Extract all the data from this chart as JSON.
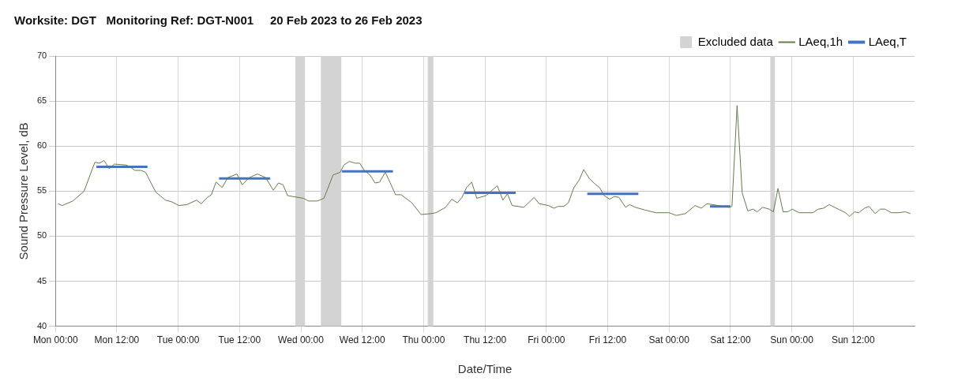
{
  "chart_data": {
    "type": "line",
    "title": "Worksite: DGT   Monitoring Ref: DGT-N001     20 Feb 2023 to 26 Feb 2023",
    "xlabel": "Date/Time",
    "ylabel": "Sound Pressure Level, dB",
    "xlim": [
      "2023-02-20T00:00",
      "2023-02-27T00:00"
    ],
    "xticks": [
      {
        "value": "2023-02-20T00:00",
        "label": "Mon 00:00"
      },
      {
        "value": "2023-02-20T12:00",
        "label": "Mon 12:00"
      },
      {
        "value": "2023-02-21T00:00",
        "label": "Tue 00:00"
      },
      {
        "value": "2023-02-21T12:00",
        "label": "Tue 12:00"
      },
      {
        "value": "2023-02-22T00:00",
        "label": "Wed 00:00"
      },
      {
        "value": "2023-02-22T12:00",
        "label": "Wed 12:00"
      },
      {
        "value": "2023-02-23T00:00",
        "label": "Thu 00:00"
      },
      {
        "value": "2023-02-23T12:00",
        "label": "Thu 12:00"
      },
      {
        "value": "2023-02-24T00:00",
        "label": "Fri 00:00"
      },
      {
        "value": "2023-02-24T12:00",
        "label": "Fri 12:00"
      },
      {
        "value": "2023-02-25T00:00",
        "label": "Sat 00:00"
      },
      {
        "value": "2023-02-25T12:00",
        "label": "Sat 12:00"
      },
      {
        "value": "2023-02-26T00:00",
        "label": "Sun 00:00"
      },
      {
        "value": "2023-02-26T12:00",
        "label": "Sun 12:00"
      }
    ],
    "ylim": [
      40,
      70
    ],
    "yticks": [
      40,
      45,
      50,
      55,
      60,
      65,
      70
    ],
    "grid": true,
    "legend": "top right",
    "marker": "none",
    "bands": [
      {
        "axis": "x",
        "from": "2023-02-21T22:54",
        "to": "2023-02-22T00:48",
        "label": "Excluded data",
        "color": "#d3d3d3"
      },
      {
        "axis": "x",
        "from": "2023-02-22T03:54",
        "to": "2023-02-22T07:54",
        "color": "#d3d3d3"
      },
      {
        "axis": "x",
        "from": "2023-02-23T00:48",
        "to": "2023-02-23T01:54",
        "color": "#d3d3d3"
      },
      {
        "axis": "x",
        "from": "2023-02-25T19:48",
        "to": "2023-02-25T20:42",
        "color": "#d3d3d3"
      }
    ],
    "series": [
      {
        "name": "LAeq,1h",
        "color": "#627d47",
        "x": [
          "2023-02-20T00:30",
          "2023-02-20T01:18",
          "2023-02-20T03:24",
          "2023-02-20T05:36",
          "2023-02-20T07:42",
          "2023-02-20T08:36",
          "2023-02-20T09:30",
          "2023-02-20T10:30",
          "2023-02-20T11:30",
          "2023-02-20T13:48",
          "2023-02-20T14:36",
          "2023-02-20T15:30",
          "2023-02-20T16:42",
          "2023-02-20T17:36",
          "2023-02-20T19:36",
          "2023-02-20T21:30",
          "2023-02-20T22:48",
          "2023-02-21T00:06",
          "2023-02-21T01:42",
          "2023-02-21T03:36",
          "2023-02-21T04:30",
          "2023-02-21T05:42",
          "2023-02-21T06:30",
          "2023-02-21T07:24",
          "2023-02-21T08:36",
          "2023-02-21T09:42",
          "2023-02-21T11:30",
          "2023-02-21T12:30",
          "2023-02-21T13:54",
          "2023-02-21T15:30",
          "2023-02-21T17:06",
          "2023-02-21T18:36",
          "2023-02-21T19:36",
          "2023-02-21T20:30",
          "2023-02-21T21:24",
          "2023-02-22T00:30",
          "2023-02-22T01:30",
          "2023-02-22T03:12",
          "2023-02-22T04:30",
          "2023-02-22T06:18",
          "2023-02-22T07:42",
          "2023-02-22T08:24",
          "2023-02-22T09:30",
          "2023-02-22T10:36",
          "2023-02-22T11:30",
          "2023-02-22T12:24",
          "2023-02-22T13:30",
          "2023-02-22T14:30",
          "2023-02-22T15:24",
          "2023-02-22T16:30",
          "2023-02-22T17:24",
          "2023-02-22T18:30",
          "2023-02-22T19:36",
          "2023-02-22T21:42",
          "2023-02-22T23:30",
          "2023-02-23T01:24",
          "2023-02-23T02:24",
          "2023-02-23T04:18",
          "2023-02-23T05:30",
          "2023-02-23T06:36",
          "2023-02-23T07:30",
          "2023-02-23T08:24",
          "2023-02-23T09:24",
          "2023-02-23T10:24",
          "2023-02-23T12:12",
          "2023-02-23T14:24",
          "2023-02-23T15:30",
          "2023-02-23T16:24",
          "2023-02-23T17:18",
          "2023-02-23T19:36",
          "2023-02-23T21:36",
          "2023-02-23T22:36",
          "2023-02-24T00:24",
          "2023-02-24T01:30",
          "2023-02-24T02:18",
          "2023-02-24T03:24",
          "2023-02-24T04:18",
          "2023-02-24T05:24",
          "2023-02-24T06:24",
          "2023-02-24T07:18",
          "2023-02-24T08:24",
          "2023-02-24T09:30",
          "2023-02-24T10:24",
          "2023-02-24T11:18",
          "2023-02-24T12:24",
          "2023-02-24T13:18",
          "2023-02-24T14:12",
          "2023-02-24T15:30",
          "2023-02-24T16:18",
          "2023-02-24T17:24",
          "2023-02-24T19:18",
          "2023-02-24T21:24",
          "2023-02-25T00:00",
          "2023-02-25T01:24",
          "2023-02-25T03:12",
          "2023-02-25T05:06",
          "2023-02-25T06:18",
          "2023-02-25T07:24",
          "2023-02-25T09:36",
          "2023-02-25T11:42",
          "2023-02-25T12:18",
          "2023-02-25T13:18",
          "2023-02-25T14:18",
          "2023-02-25T15:24",
          "2023-02-25T16:24",
          "2023-02-25T17:12",
          "2023-02-25T18:18",
          "2023-02-25T19:36",
          "2023-02-25T20:24",
          "2023-02-25T21:18",
          "2023-02-25T22:18",
          "2023-02-25T23:12",
          "2023-02-26T00:06",
          "2023-02-26T01:24",
          "2023-02-26T04:06",
          "2023-02-26T05:12",
          "2023-02-26T06:12",
          "2023-02-26T07:18",
          "2023-02-26T10:30",
          "2023-02-26T11:18",
          "2023-02-26T12:18",
          "2023-02-26T13:06",
          "2023-02-26T14:12",
          "2023-02-26T15:06",
          "2023-02-26T16:18",
          "2023-02-26T17:18",
          "2023-02-26T18:12",
          "2023-02-26T19:30",
          "2023-02-26T20:48",
          "2023-02-26T22:12",
          "2023-02-26T23:12"
        ],
        "values": [
          53.6,
          53.4,
          53.9,
          55.0,
          58.2,
          58.1,
          58.4,
          57.5,
          58.0,
          57.9,
          57.7,
          57.3,
          57.3,
          57.1,
          54.9,
          54.0,
          53.8,
          53.4,
          53.5,
          54.0,
          53.6,
          54.3,
          54.6,
          56.0,
          55.4,
          56.5,
          56.9,
          55.7,
          56.5,
          56.9,
          56.5,
          55.1,
          55.9,
          55.7,
          54.5,
          54.2,
          53.9,
          53.9,
          54.2,
          56.8,
          57.1,
          57.9,
          58.3,
          58.1,
          58.1,
          57.3,
          56.8,
          55.9,
          56.0,
          57.1,
          56.0,
          54.6,
          54.6,
          53.7,
          52.4,
          52.5,
          52.6,
          53.2,
          54.1,
          53.7,
          54.3,
          55.4,
          56.0,
          54.2,
          54.5,
          55.6,
          54.0,
          54.7,
          53.4,
          53.2,
          54.3,
          53.6,
          53.4,
          53.1,
          53.3,
          53.3,
          53.7,
          55.4,
          56.2,
          57.4,
          56.4,
          55.8,
          55.4,
          54.5,
          54.1,
          54.4,
          54.3,
          53.2,
          53.5,
          53.2,
          52.9,
          52.6,
          52.6,
          52.3,
          52.5,
          53.4,
          53.1,
          53.6,
          53.4,
          53.2,
          53.3,
          64.5,
          54.8,
          52.8,
          53.0,
          52.7,
          53.2,
          53.0,
          52.7,
          55.3,
          52.7,
          52.7,
          53.0,
          52.6,
          52.6,
          53.0,
          53.1,
          53.5,
          52.6,
          52.2,
          52.7,
          52.6,
          53.1,
          53.3,
          52.5,
          53.0,
          53.0,
          52.6,
          52.6,
          52.7,
          52.5
        ]
      },
      {
        "name": "LAeq,T",
        "color": "#4472c4",
        "x": [
          "2023-02-20T08:00",
          "2023-02-20T18:00",
          "2023-02-21T01:00",
          "2023-02-21T08:00",
          "2023-02-21T18:00",
          "2023-02-22T01:00",
          "2023-02-22T08:00",
          "2023-02-22T18:00",
          "2023-02-23T01:00",
          "2023-02-23T08:00",
          "2023-02-23T18:00",
          "2023-02-24T01:00",
          "2023-02-24T08:00",
          "2023-02-24T18:00",
          "2023-02-25T01:00",
          "2023-02-25T08:00",
          "2023-02-25T12:00"
        ],
        "values": [
          57.7,
          57.7,
          null,
          56.4,
          56.4,
          null,
          57.2,
          57.2,
          null,
          54.8,
          54.8,
          null,
          54.7,
          54.7,
          null,
          53.3,
          53.3
        ]
      }
    ]
  }
}
